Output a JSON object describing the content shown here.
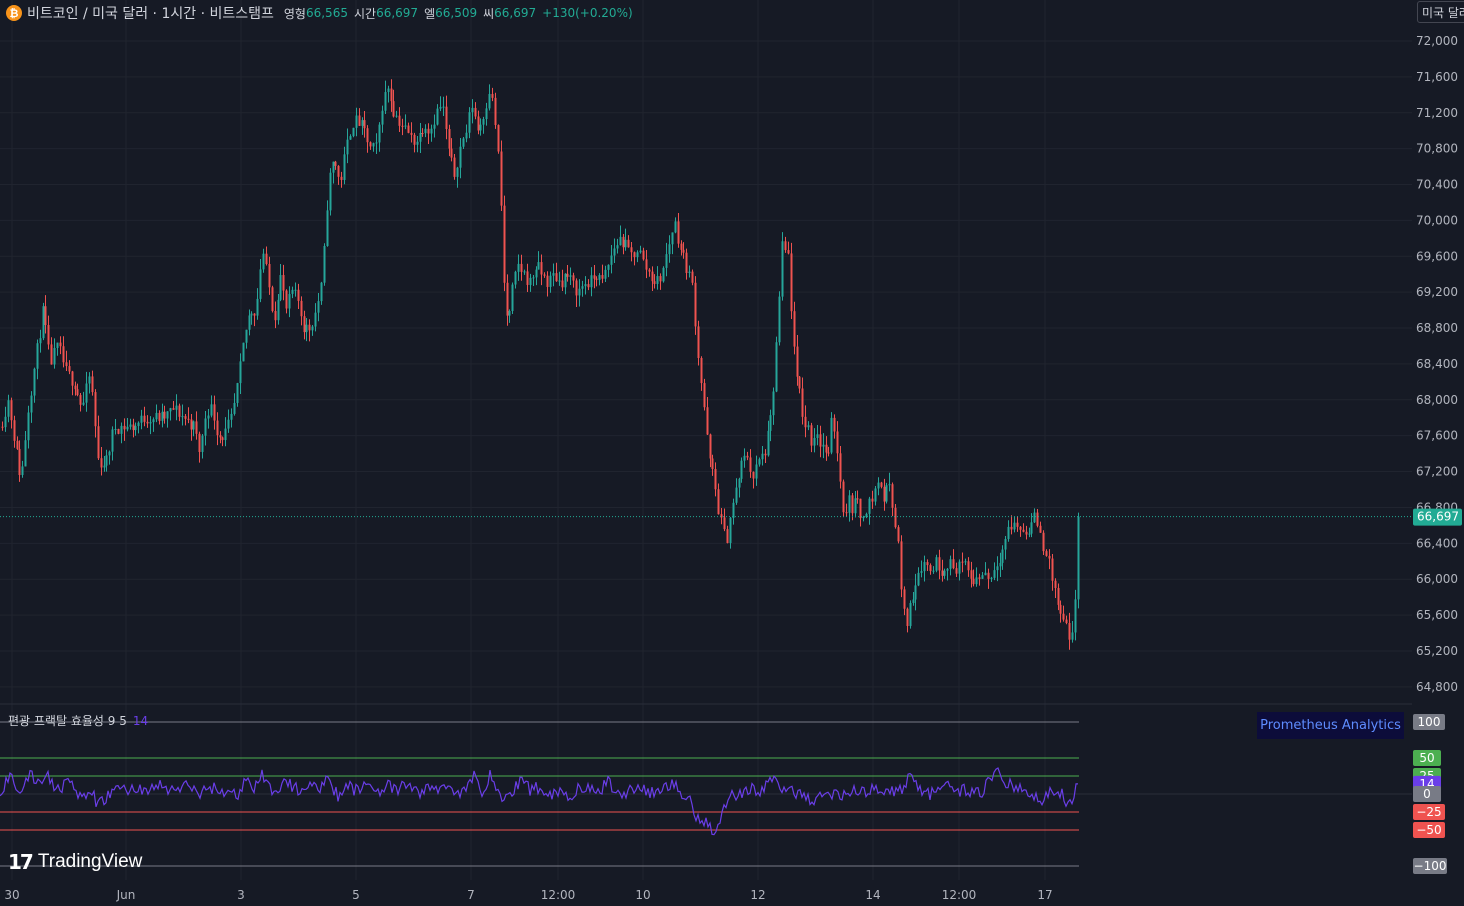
{
  "header": {
    "coin_icon": "bitcoin-icon",
    "coin_symbol": "₿",
    "symbol_title": "비트코인 / 미국 달러 · 1시간 · 비트스탬프",
    "ohlc": [
      {
        "label": "영형",
        "value": "66,565"
      },
      {
        "label": "시간",
        "value": "66,697"
      },
      {
        "label": "엘",
        "value": "66,509"
      },
      {
        "label": "씨",
        "value": "66,697"
      }
    ],
    "change": "+130(+0.20%)"
  },
  "currency_button": "미국 달러",
  "price_axis": {
    "labels": [
      "72,000",
      "71,600",
      "71,200",
      "70,800",
      "70,400",
      "70,000",
      "69,600",
      "69,200",
      "68,800",
      "68,400",
      "68,000",
      "67,600",
      "67,200",
      "66,800",
      "66,400",
      "66,000",
      "65,600",
      "65,200",
      "64,800"
    ],
    "current_price": "66,697"
  },
  "time_axis": [
    "30",
    "Jun",
    "3",
    "5",
    "7",
    "12:00",
    "10",
    "12",
    "14",
    "12:00",
    "17"
  ],
  "indicator": {
    "title": "편광 프랙탈 효율성 9 5",
    "value": "14",
    "levels": [
      "100",
      "50",
      "25",
      "14",
      "0",
      "−25",
      "−50",
      "−100"
    ]
  },
  "promo_label": "Prometheus Analytics",
  "branding": {
    "mark": "17",
    "text": "TradingView"
  },
  "colors": {
    "background": "#161a25",
    "up": "#26a69a",
    "down": "#ef5350",
    "indicator_line": "#6a3ee8",
    "current_price_badge": "#22ab94",
    "upper_levels": "#4caf50",
    "lower_levels": "#ef5350"
  },
  "chart_data": {
    "type": "candlestick",
    "interval": "1h",
    "y_range": [
      64600,
      72200
    ],
    "anchors": [
      [
        0,
        67700
      ],
      [
        8,
        68000
      ],
      [
        15,
        67500
      ],
      [
        21,
        67100
      ],
      [
        28,
        67900
      ],
      [
        36,
        68500
      ],
      [
        43,
        69000
      ],
      [
        50,
        68400
      ],
      [
        58,
        68600
      ],
      [
        66,
        68300
      ],
      [
        74,
        68200
      ],
      [
        82,
        67900
      ],
      [
        90,
        68300
      ],
      [
        98,
        67300
      ],
      [
        106,
        67300
      ],
      [
        114,
        67700
      ],
      [
        124,
        67700
      ],
      [
        134,
        67700
      ],
      [
        144,
        67800
      ],
      [
        154,
        67800
      ],
      [
        164,
        67800
      ],
      [
        174,
        67900
      ],
      [
        184,
        67800
      ],
      [
        194,
        67700
      ],
      [
        200,
        67400
      ],
      [
        206,
        67900
      ],
      [
        212,
        67900
      ],
      [
        218,
        67600
      ],
      [
        224,
        67600
      ],
      [
        232,
        67800
      ],
      [
        238,
        68200
      ],
      [
        244,
        68700
      ],
      [
        250,
        69000
      ],
      [
        256,
        69000
      ],
      [
        262,
        69700
      ],
      [
        268,
        69300
      ],
      [
        274,
        68900
      ],
      [
        280,
        69400
      ],
      [
        286,
        69000
      ],
      [
        292,
        69200
      ],
      [
        298,
        69100
      ],
      [
        304,
        68800
      ],
      [
        310,
        68800
      ],
      [
        316,
        69000
      ],
      [
        322,
        69300
      ],
      [
        328,
        70400
      ],
      [
        334,
        70700
      ],
      [
        340,
        70400
      ],
      [
        346,
        70800
      ],
      [
        352,
        71100
      ],
      [
        358,
        71100
      ],
      [
        364,
        71000
      ],
      [
        370,
        70800
      ],
      [
        376,
        70800
      ],
      [
        382,
        71300
      ],
      [
        388,
        71500
      ],
      [
        394,
        71200
      ],
      [
        400,
        71100
      ],
      [
        406,
        71000
      ],
      [
        412,
        70900
      ],
      [
        418,
        70900
      ],
      [
        424,
        71100
      ],
      [
        430,
        71000
      ],
      [
        436,
        71200
      ],
      [
        442,
        71300
      ],
      [
        448,
        70800
      ],
      [
        454,
        70500
      ],
      [
        460,
        70800
      ],
      [
        466,
        71000
      ],
      [
        472,
        71300
      ],
      [
        478,
        71000
      ],
      [
        484,
        71200
      ],
      [
        490,
        71500
      ],
      [
        496,
        71000
      ],
      [
        500,
        70400
      ],
      [
        504,
        69200
      ],
      [
        508,
        68800
      ],
      [
        512,
        69200
      ],
      [
        518,
        69500
      ],
      [
        524,
        69400
      ],
      [
        530,
        69300
      ],
      [
        536,
        69500
      ],
      [
        542,
        69400
      ],
      [
        548,
        69300
      ],
      [
        554,
        69400
      ],
      [
        560,
        69300
      ],
      [
        566,
        69400
      ],
      [
        572,
        69300
      ],
      [
        578,
        69200
      ],
      [
        584,
        69300
      ],
      [
        590,
        69300
      ],
      [
        596,
        69400
      ],
      [
        602,
        69300
      ],
      [
        608,
        69500
      ],
      [
        614,
        69700
      ],
      [
        620,
        69800
      ],
      [
        626,
        69700
      ],
      [
        632,
        69600
      ],
      [
        638,
        69700
      ],
      [
        644,
        69500
      ],
      [
        650,
        69400
      ],
      [
        656,
        69300
      ],
      [
        662,
        69400
      ],
      [
        668,
        69700
      ],
      [
        674,
        70000
      ],
      [
        680,
        69700
      ],
      [
        686,
        69500
      ],
      [
        692,
        69300
      ],
      [
        698,
        68500
      ],
      [
        704,
        67900
      ],
      [
        708,
        67400
      ],
      [
        714,
        67100
      ],
      [
        718,
        66800
      ],
      [
        722,
        66600
      ],
      [
        726,
        66400
      ],
      [
        730,
        66700
      ],
      [
        734,
        66900
      ],
      [
        738,
        67100
      ],
      [
        742,
        67300
      ],
      [
        748,
        67400
      ],
      [
        752,
        67100
      ],
      [
        758,
        67300
      ],
      [
        764,
        67400
      ],
      [
        770,
        67700
      ],
      [
        774,
        68200
      ],
      [
        778,
        68900
      ],
      [
        782,
        69700
      ],
      [
        788,
        69600
      ],
      [
        792,
        68800
      ],
      [
        796,
        68200
      ],
      [
        800,
        68100
      ],
      [
        804,
        67700
      ],
      [
        808,
        67700
      ],
      [
        812,
        67500
      ],
      [
        816,
        67700
      ],
      [
        820,
        67500
      ],
      [
        824,
        67500
      ],
      [
        828,
        67300
      ],
      [
        832,
        67800
      ],
      [
        836,
        67600
      ],
      [
        840,
        67100
      ],
      [
        844,
        66700
      ],
      [
        848,
        66900
      ],
      [
        852,
        66800
      ],
      [
        856,
        66900
      ],
      [
        860,
        66700
      ],
      [
        866,
        66800
      ],
      [
        872,
        66900
      ],
      [
        878,
        67100
      ],
      [
        884,
        66900
      ],
      [
        890,
        67100
      ],
      [
        894,
        66700
      ],
      [
        898,
        66400
      ],
      [
        902,
        65700
      ],
      [
        906,
        65500
      ],
      [
        910,
        65700
      ],
      [
        914,
        65900
      ],
      [
        918,
        66100
      ],
      [
        924,
        66200
      ],
      [
        930,
        66100
      ],
      [
        936,
        66200
      ],
      [
        942,
        66100
      ],
      [
        948,
        66200
      ],
      [
        954,
        66100
      ],
      [
        960,
        66200
      ],
      [
        966,
        66100
      ],
      [
        972,
        66000
      ],
      [
        978,
        66000
      ],
      [
        984,
        66100
      ],
      [
        990,
        66000
      ],
      [
        996,
        66200
      ],
      [
        1002,
        66300
      ],
      [
        1006,
        66500
      ],
      [
        1012,
        66600
      ],
      [
        1018,
        66600
      ],
      [
        1024,
        66500
      ],
      [
        1030,
        66600
      ],
      [
        1036,
        66700
      ],
      [
        1042,
        66400
      ],
      [
        1046,
        66300
      ],
      [
        1050,
        66100
      ],
      [
        1054,
        65900
      ],
      [
        1058,
        65700
      ],
      [
        1062,
        65500
      ],
      [
        1066,
        65500
      ],
      [
        1070,
        65200
      ],
      [
        1074,
        65500
      ],
      [
        1078,
        66700
      ]
    ],
    "indicator_series": {
      "name": "편광 프랙탈 효율성 9 5",
      "y_range": [
        -100,
        100
      ],
      "anchors": [
        [
          0,
          0
        ],
        [
          10,
          25
        ],
        [
          20,
          5
        ],
        [
          30,
          25
        ],
        [
          40,
          15
        ],
        [
          46,
          30
        ],
        [
          54,
          10
        ],
        [
          62,
          10
        ],
        [
          68,
          30
        ],
        [
          76,
          0
        ],
        [
          82,
          -10
        ],
        [
          90,
          5
        ],
        [
          98,
          -15
        ],
        [
          106,
          -5
        ],
        [
          114,
          5
        ],
        [
          122,
          10
        ],
        [
          130,
          5
        ],
        [
          140,
          8
        ],
        [
          150,
          5
        ],
        [
          160,
          12
        ],
        [
          170,
          5
        ],
        [
          180,
          8
        ],
        [
          190,
          12
        ],
        [
          200,
          0
        ],
        [
          210,
          10
        ],
        [
          220,
          5
        ],
        [
          230,
          0
        ],
        [
          240,
          0
        ],
        [
          248,
          30
        ],
        [
          254,
          5
        ],
        [
          262,
          25
        ],
        [
          270,
          5
        ],
        [
          278,
          10
        ],
        [
          288,
          15
        ],
        [
          298,
          5
        ],
        [
          308,
          15
        ],
        [
          318,
          5
        ],
        [
          328,
          30
        ],
        [
          334,
          5
        ],
        [
          340,
          -5
        ],
        [
          348,
          10
        ],
        [
          358,
          5
        ],
        [
          368,
          15
        ],
        [
          378,
          5
        ],
        [
          388,
          10
        ],
        [
          398,
          5
        ],
        [
          408,
          15
        ],
        [
          418,
          0
        ],
        [
          428,
          10
        ],
        [
          438,
          5
        ],
        [
          448,
          15
        ],
        [
          458,
          0
        ],
        [
          466,
          5
        ],
        [
          474,
          25
        ],
        [
          482,
          5
        ],
        [
          490,
          25
        ],
        [
          498,
          5
        ],
        [
          504,
          -10
        ],
        [
          514,
          5
        ],
        [
          522,
          25
        ],
        [
          530,
          5
        ],
        [
          540,
          10
        ],
        [
          550,
          0
        ],
        [
          560,
          5
        ],
        [
          570,
          -5
        ],
        [
          578,
          10
        ],
        [
          590,
          5
        ],
        [
          600,
          0
        ],
        [
          606,
          20
        ],
        [
          614,
          5
        ],
        [
          620,
          0
        ],
        [
          630,
          5
        ],
        [
          640,
          10
        ],
        [
          650,
          0
        ],
        [
          660,
          5
        ],
        [
          670,
          15
        ],
        [
          680,
          5
        ],
        [
          690,
          -10
        ],
        [
          696,
          -30
        ],
        [
          704,
          -35
        ],
        [
          710,
          -45
        ],
        [
          716,
          -55
        ],
        [
          720,
          -40
        ],
        [
          726,
          -10
        ],
        [
          734,
          0
        ],
        [
          740,
          0
        ],
        [
          750,
          10
        ],
        [
          760,
          0
        ],
        [
          770,
          20
        ],
        [
          778,
          15
        ],
        [
          786,
          5
        ],
        [
          796,
          0
        ],
        [
          806,
          0
        ],
        [
          814,
          -15
        ],
        [
          822,
          0
        ],
        [
          832,
          0
        ],
        [
          842,
          0
        ],
        [
          852,
          5
        ],
        [
          860,
          0
        ],
        [
          870,
          5
        ],
        [
          880,
          10
        ],
        [
          890,
          5
        ],
        [
          898,
          0
        ],
        [
          904,
          10
        ],
        [
          910,
          30
        ],
        [
          916,
          15
        ],
        [
          922,
          5
        ],
        [
          930,
          0
        ],
        [
          940,
          5
        ],
        [
          950,
          10
        ],
        [
          960,
          5
        ],
        [
          970,
          5
        ],
        [
          980,
          0
        ],
        [
          990,
          20
        ],
        [
          996,
          30
        ],
        [
          1004,
          20
        ],
        [
          1012,
          10
        ],
        [
          1020,
          5
        ],
        [
          1028,
          0
        ],
        [
          1034,
          0
        ],
        [
          1042,
          -15
        ],
        [
          1050,
          5
        ],
        [
          1056,
          -5
        ],
        [
          1062,
          5
        ],
        [
          1068,
          -20
        ],
        [
          1074,
          0
        ],
        [
          1078,
          14
        ]
      ],
      "levels": [
        100,
        50,
        25,
        0,
        -25,
        -50,
        -100
      ],
      "last_value": 14
    }
  }
}
